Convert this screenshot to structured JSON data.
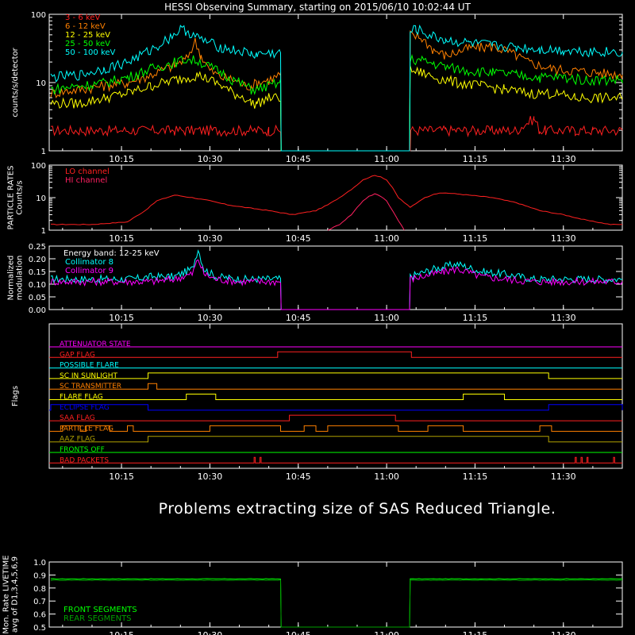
{
  "title": "HESSI Observing Summary, starting on 2015/06/10 10:02:44 UT",
  "message": "Problems extracting size of SAS Reduced Triangle.",
  "colors": {
    "red": "#ff2020",
    "orange": "#ff8000",
    "yellow": "#ffff00",
    "green": "#00ff00",
    "cyan": "#00ffff",
    "magenta": "#ff00ff",
    "pink": "#ff2060",
    "blue": "#0000ff",
    "darkgreen": "#00a000",
    "olive": "#b0a000",
    "white": "#ffffff"
  },
  "time_axis": {
    "tick_labels": [
      "10:15",
      "10:30",
      "10:45",
      "11:00",
      "11:15",
      "11:30"
    ],
    "tick_minutes": [
      15,
      30,
      45,
      60,
      75,
      90
    ],
    "range_minutes": [
      2.73,
      100
    ]
  },
  "chart_data": [
    {
      "type": "line",
      "ylabel": "counts/s/detector",
      "yscale": "log",
      "ylim": [
        1,
        100
      ],
      "tick_labels": [
        "1",
        "10",
        "100"
      ],
      "legend_position": "top-left",
      "series": [
        {
          "name": "3 - 6 keV",
          "color": "red",
          "x": [
            3,
            8,
            12,
            14,
            17,
            24,
            26,
            28,
            31,
            36,
            37,
            40,
            42,
            42.1,
            64,
            64.1,
            67,
            70,
            72,
            74,
            78,
            80,
            82,
            85,
            86,
            87,
            89,
            92,
            95,
            100
          ],
          "y": [
            2,
            2,
            2,
            2,
            2,
            2,
            2,
            2,
            2,
            2,
            2,
            2,
            2,
            1,
            1,
            2,
            2,
            2,
            2,
            2,
            2,
            2,
            2,
            3,
            2,
            2,
            2,
            2,
            2,
            2
          ]
        },
        {
          "name": "6 - 12 keV",
          "color": "orange",
          "x": [
            3,
            8,
            12,
            16,
            20,
            24,
            26,
            27.5,
            28.5,
            30,
            32,
            34,
            36,
            37,
            38,
            40,
            41,
            42,
            42.1,
            63.9,
            64,
            66,
            68,
            70,
            72,
            74,
            76,
            78,
            80,
            82,
            84,
            86,
            88,
            92,
            96,
            100
          ],
          "y": [
            7,
            8,
            9,
            10,
            13,
            18,
            22,
            40,
            25,
            15,
            12,
            11,
            9,
            9,
            10,
            11,
            12,
            13,
            1,
            1,
            50,
            45,
            30,
            25,
            28,
            32,
            33,
            34,
            30,
            25,
            20,
            18,
            16,
            15,
            14,
            13
          ]
        },
        {
          "name": "12 - 25 keV",
          "color": "yellow",
          "x": [
            3,
            8,
            12,
            16,
            20,
            24,
            26,
            28,
            30,
            32,
            34,
            36,
            37,
            38,
            40,
            42,
            42.1,
            63.9,
            64,
            66,
            68,
            70,
            72,
            76,
            80,
            84,
            88,
            92,
            96,
            100
          ],
          "y": [
            5,
            5,
            6,
            7,
            9,
            11,
            12,
            13,
            11,
            9,
            7,
            6,
            5,
            5,
            6,
            6,
            1,
            1,
            15,
            14,
            12,
            11,
            10,
            9,
            8,
            7,
            7,
            6,
            6,
            6
          ]
        },
        {
          "name": "25 - 50 keV",
          "color": "green",
          "x": [
            3,
            8,
            12,
            16,
            20,
            24,
            26,
            28,
            30,
            32,
            34,
            36,
            37,
            38,
            40,
            42,
            42.1,
            63.9,
            64,
            66,
            68,
            70,
            74,
            78,
            82,
            86,
            90,
            94,
            100
          ],
          "y": [
            8,
            9,
            10,
            12,
            16,
            20,
            22,
            21,
            17,
            14,
            11,
            9,
            8,
            8,
            9,
            10,
            1,
            1,
            22,
            21,
            19,
            17,
            15,
            14,
            13,
            12,
            12,
            11,
            11
          ]
        },
        {
          "name": "50 - 100 keV",
          "color": "cyan",
          "x": [
            3,
            8,
            12,
            16,
            20,
            23,
            25,
            26,
            28,
            30,
            32,
            34,
            36,
            37,
            38,
            40,
            42,
            42.1,
            63.9,
            64,
            65,
            67,
            70,
            74,
            78,
            82,
            86,
            90,
            94,
            100
          ],
          "y": [
            12,
            13,
            16,
            20,
            30,
            45,
            60,
            58,
            45,
            38,
            33,
            30,
            28,
            26,
            26,
            27,
            27,
            1,
            1,
            55,
            62,
            50,
            42,
            38,
            35,
            33,
            31,
            30,
            29,
            28
          ]
        }
      ]
    },
    {
      "type": "line",
      "ylabel": "PARTICLE RATES Counts/s",
      "yscale": "log",
      "ylim": [
        1,
        100
      ],
      "tick_labels": [
        "1",
        "10",
        "100"
      ],
      "legend_position": "top-left",
      "series": [
        {
          "name": "LO channel",
          "color": "red",
          "x": [
            3,
            10,
            16,
            19,
            21,
            24,
            27,
            30,
            33,
            36,
            40,
            44,
            48,
            50,
            52,
            54,
            55,
            56,
            57,
            58,
            59,
            60,
            61,
            62,
            64,
            66,
            68,
            70,
            74,
            78,
            82,
            86,
            90,
            94,
            98,
            100
          ],
          "y": [
            1.5,
            1.5,
            1.8,
            4,
            8,
            12,
            10,
            8,
            6,
            5,
            4,
            3,
            4,
            6,
            10,
            18,
            25,
            35,
            42,
            48,
            44,
            35,
            20,
            10,
            5,
            9,
            13,
            14,
            12,
            10,
            7,
            4,
            3,
            2,
            1.5,
            1.5
          ]
        },
        {
          "name": "HI channel",
          "color": "pink",
          "x": [
            50,
            52,
            54,
            55,
            56,
            57,
            58,
            59,
            60,
            61,
            62,
            63
          ],
          "y": [
            1,
            1.5,
            3,
            5,
            8,
            11,
            13,
            11,
            8,
            4,
            2,
            1
          ]
        }
      ]
    },
    {
      "type": "line",
      "ylabel": "Normalized modulation",
      "ylim": [
        0,
        0.25
      ],
      "tick_labels": [
        "0.00",
        "0.05",
        "0.10",
        "0.15",
        "0.20",
        "0.25"
      ],
      "annotation": "Energy band: 12-25 keV",
      "legend_position": "top-left",
      "series": [
        {
          "name": "Collimator 8",
          "color": "cyan",
          "x": [
            3,
            10,
            17,
            20,
            24,
            27,
            28,
            29,
            31,
            35,
            40,
            42,
            42.1,
            63.9,
            64,
            68,
            72,
            76,
            80,
            85,
            90,
            95,
            100
          ],
          "y": [
            0.12,
            0.12,
            0.12,
            0.13,
            0.13,
            0.16,
            0.24,
            0.16,
            0.13,
            0.12,
            0.12,
            0.12,
            0.0,
            0.0,
            0.13,
            0.16,
            0.18,
            0.15,
            0.14,
            0.12,
            0.12,
            0.12,
            0.12
          ]
        },
        {
          "name": "Collimator 9",
          "color": "magenta",
          "x": [
            3,
            10,
            17,
            20,
            24,
            27,
            28,
            29,
            31,
            35,
            40,
            42,
            42.1,
            63.9,
            64,
            68,
            72,
            76,
            80,
            85,
            90,
            95,
            100
          ],
          "y": [
            0.11,
            0.11,
            0.11,
            0.11,
            0.12,
            0.14,
            0.2,
            0.14,
            0.12,
            0.11,
            0.11,
            0.11,
            0.0,
            0.0,
            0.12,
            0.14,
            0.16,
            0.13,
            0.12,
            0.11,
            0.11,
            0.11,
            0.11
          ]
        }
      ]
    },
    {
      "type": "table",
      "ylabel": "Flags",
      "flags": [
        {
          "name": "ATTENUATOR STATE",
          "color": "magenta",
          "on": []
        },
        {
          "name": "GAP FLAG",
          "color": "red",
          "on": [
            [
              41.5,
              64.2
            ]
          ]
        },
        {
          "name": "POSSIBLE FLARE",
          "color": "cyan",
          "on": []
        },
        {
          "name": "SC IN SUNLIGHT",
          "color": "yellow",
          "on": [
            [
              19.5,
              87.5
            ]
          ]
        },
        {
          "name": "SC TRANSMITTER",
          "color": "orange",
          "on": [
            [
              19.5,
              21
            ]
          ]
        },
        {
          "name": "FLARE FLAG",
          "color": "yellow",
          "on": [
            [
              26,
              31
            ],
            [
              73,
              80
            ]
          ]
        },
        {
          "name": "ECLIPSE FLAG",
          "color": "blue",
          "on": [
            [
              3,
              19.5
            ],
            [
              87.5,
              100
            ]
          ]
        },
        {
          "name": "SAA FLAG",
          "color": "red",
          "on": [
            [
              43.5,
              61.5
            ]
          ]
        },
        {
          "name": "PARTICLE FLAG",
          "color": "orange",
          "on": [
            [
              5,
              8
            ],
            [
              9,
              13
            ],
            [
              16,
              17
            ],
            [
              30,
              42
            ],
            [
              46,
              48
            ],
            [
              50,
              62
            ],
            [
              67,
              73
            ],
            [
              86,
              88
            ]
          ]
        },
        {
          "name": "AAZ FLAG",
          "color": "olive",
          "on": [
            [
              19.5,
              87.5
            ]
          ]
        },
        {
          "name": "FRONTS OFF",
          "color": "green",
          "on": []
        },
        {
          "name": "BAD PACKETS",
          "color": "red",
          "on": [
            [
              37.5,
              37.7
            ],
            [
              38.5,
              38.7
            ],
            [
              92,
              92.2
            ],
            [
              93,
              93.2
            ],
            [
              94,
              94.2
            ],
            [
              98.5,
              98.7
            ]
          ]
        }
      ]
    },
    {
      "type": "line",
      "ylabel": "Mon. Rate LIVETIME avg of D1,3,4,5,6,9",
      "ylim": [
        0.5,
        1.0
      ],
      "tick_labels": [
        "0.5",
        "0.6",
        "0.7",
        "0.8",
        "0.9",
        "1.0"
      ],
      "legend_position": "bottom-left",
      "series": [
        {
          "name": "FRONT SEGMENTS",
          "color": "green",
          "x": [
            3,
            42,
            42.1,
            63.9,
            64,
            100
          ],
          "y": [
            0.87,
            0.87,
            0.5,
            0.5,
            0.87,
            0.87
          ]
        },
        {
          "name": "REAR SEGMENTS",
          "color": "darkgreen",
          "x": [
            3,
            42,
            42.1,
            63.9,
            64,
            100
          ],
          "y": [
            0.86,
            0.86,
            0.5,
            0.5,
            0.86,
            0.86
          ]
        }
      ]
    }
  ]
}
